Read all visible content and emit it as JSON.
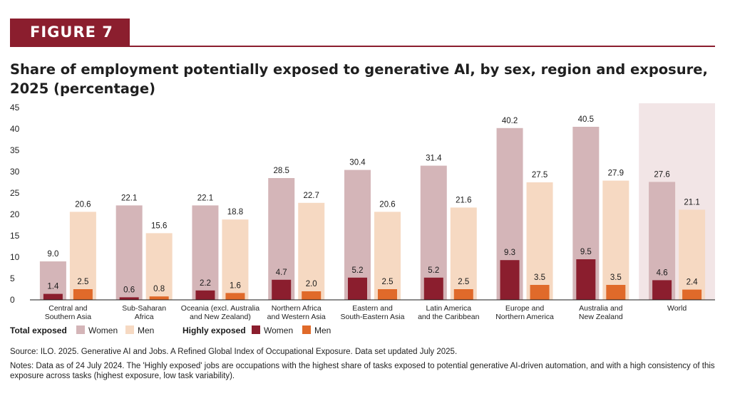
{
  "badge": "FIGURE 7",
  "title": "Share of employment potentially exposed to generative AI, by sex, region and exposure, 2025 (percentage)",
  "source": "Source: ILO. 2025. Generative AI and Jobs. A Refined Global Index of Occupational Exposure. Data set updated July 2025.",
  "notes": "Notes: Data as of 24 July 2024. The 'Highly exposed' jobs are occupations with the highest share of tasks exposed to potential generative AI-driven automation, and with a high consistency of this exposure across tasks (highest exposure, low task variability).",
  "colors": {
    "total_women": "#d4b5b8",
    "total_men": "#f6d9c2",
    "high_women": "#8b1e2e",
    "high_men": "#e06a2a",
    "world_bg": "#f2e5e6",
    "axis": "#1a1a1a"
  },
  "chart_data": {
    "type": "bar",
    "ylim": [
      0,
      45
    ],
    "yticks": [
      0,
      5,
      10,
      15,
      20,
      25,
      30,
      35,
      40,
      45
    ],
    "categories": [
      [
        "Central and",
        "Southern Asia"
      ],
      [
        "Sub-Saharan",
        "Africa"
      ],
      [
        "Oceania (excl. Australia",
        "and New Zealand)"
      ],
      [
        "Northern Africa",
        "and Western Asia"
      ],
      [
        "Eastern and",
        "South-Eastern Asia"
      ],
      [
        "Latin America",
        "and the Caribbean"
      ],
      [
        "Europe and",
        "Northern America"
      ],
      [
        "Australia and",
        "New Zealand"
      ],
      [
        "World"
      ]
    ],
    "highlight_category": 8,
    "series": [
      {
        "name": "Women",
        "group": "Total exposed",
        "values": [
          9.0,
          22.1,
          22.1,
          28.5,
          30.4,
          31.4,
          40.2,
          40.5,
          27.6
        ]
      },
      {
        "name": "Men",
        "group": "Total exposed",
        "values": [
          20.6,
          15.6,
          18.8,
          22.7,
          20.6,
          21.6,
          27.5,
          27.9,
          21.1
        ]
      },
      {
        "name": "Women",
        "group": "Highly exposed",
        "values": [
          1.4,
          0.6,
          2.2,
          4.7,
          5.2,
          5.2,
          9.3,
          9.5,
          4.6
        ]
      },
      {
        "name": "Men",
        "group": "Highly exposed",
        "values": [
          2.5,
          0.8,
          1.6,
          2.0,
          2.5,
          2.5,
          3.5,
          3.5,
          2.4
        ]
      }
    ],
    "legend": {
      "groups": [
        "Total exposed",
        "Highly exposed"
      ],
      "items": [
        "Women",
        "Men"
      ],
      "placement": "bottom-left"
    }
  }
}
